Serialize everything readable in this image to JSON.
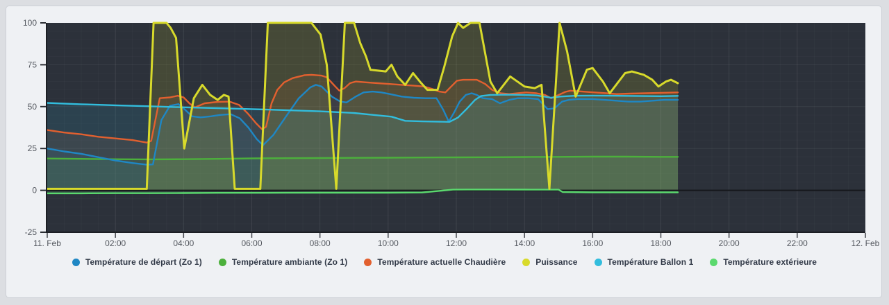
{
  "page": {
    "background_color": "#dcdee2",
    "card_background": "#eff1f4",
    "card_border": "#cdd0d6"
  },
  "chart_data": {
    "type": "line",
    "title": "",
    "xlabel": "",
    "ylabel": "",
    "xlim": [
      0,
      24
    ],
    "ylim": [
      -25,
      100
    ],
    "x_unit": "hours since 11. Feb 00:00",
    "grid": true,
    "legend_position": "bottom",
    "plot_background": "#2c313a",
    "axis_line_color": "#1c1f24",
    "zero_line_color": "#15171b",
    "tick_text_color": "#54585f",
    "xticks": [
      {
        "h": 0,
        "label": "11. Feb"
      },
      {
        "h": 2,
        "label": "02:00"
      },
      {
        "h": 4,
        "label": "04:00"
      },
      {
        "h": 6,
        "label": "06:00"
      },
      {
        "h": 8,
        "label": "08:00"
      },
      {
        "h": 10,
        "label": "10:00"
      },
      {
        "h": 12,
        "label": "12:00"
      },
      {
        "h": 14,
        "label": "14:00"
      },
      {
        "h": 16,
        "label": "16:00"
      },
      {
        "h": 18,
        "label": "18:00"
      },
      {
        "h": 20,
        "label": "20:00"
      },
      {
        "h": 22,
        "label": "22:00"
      },
      {
        "h": 24,
        "label": "12. Feb"
      }
    ],
    "yticks": [
      {
        "v": -25,
        "label": "-25"
      },
      {
        "v": 0,
        "label": "0"
      },
      {
        "v": 25,
        "label": "25"
      },
      {
        "v": 50,
        "label": "50"
      },
      {
        "v": 75,
        "label": "75"
      },
      {
        "v": 100,
        "label": "100"
      }
    ],
    "series": [
      {
        "name": "Température de départ (Zo 1)",
        "color": "#1f87c4",
        "z": 2,
        "width": 2.4,
        "fill_opacity": 0.1,
        "points": [
          [
            0,
            25
          ],
          [
            0.5,
            23.2
          ],
          [
            1,
            21.8
          ],
          [
            1.5,
            19.8
          ],
          [
            2,
            17.8
          ],
          [
            2.5,
            16.3
          ],
          [
            2.92,
            15.3
          ],
          [
            3.1,
            15.5
          ],
          [
            3.35,
            42
          ],
          [
            3.6,
            50.5
          ],
          [
            3.85,
            51.5
          ],
          [
            4.05,
            48
          ],
          [
            4.25,
            44.2
          ],
          [
            4.5,
            43.6
          ],
          [
            4.8,
            44.2
          ],
          [
            5.05,
            45
          ],
          [
            5.38,
            45.5
          ],
          [
            5.65,
            43
          ],
          [
            5.9,
            37.5
          ],
          [
            6.15,
            30.5
          ],
          [
            6.33,
            27
          ],
          [
            6.63,
            33
          ],
          [
            7,
            44
          ],
          [
            7.38,
            55
          ],
          [
            7.72,
            61.5
          ],
          [
            7.88,
            63
          ],
          [
            8.05,
            62
          ],
          [
            8.35,
            56
          ],
          [
            8.6,
            53
          ],
          [
            8.78,
            52.5
          ],
          [
            9.05,
            56
          ],
          [
            9.28,
            58.5
          ],
          [
            9.55,
            59
          ],
          [
            9.8,
            58.5
          ],
          [
            10.05,
            57.5
          ],
          [
            10.4,
            56
          ],
          [
            10.75,
            55.3
          ],
          [
            11.1,
            55
          ],
          [
            11.42,
            55
          ],
          [
            11.62,
            48
          ],
          [
            11.78,
            41
          ],
          [
            11.95,
            47
          ],
          [
            12.1,
            53
          ],
          [
            12.28,
            57
          ],
          [
            12.45,
            58
          ],
          [
            12.6,
            57
          ],
          [
            12.78,
            55
          ],
          [
            13.05,
            54.5
          ],
          [
            13.28,
            52
          ],
          [
            13.55,
            54
          ],
          [
            13.8,
            55
          ],
          [
            14.1,
            55
          ],
          [
            14.4,
            54.5
          ],
          [
            14.68,
            48.5
          ],
          [
            14.88,
            49
          ],
          [
            15.1,
            53
          ],
          [
            15.3,
            54
          ],
          [
            15.55,
            54.5
          ],
          [
            16,
            54.5
          ],
          [
            16.35,
            54
          ],
          [
            16.7,
            53.5
          ],
          [
            17.05,
            53
          ],
          [
            17.4,
            53
          ],
          [
            17.75,
            53.5
          ],
          [
            18.1,
            54
          ],
          [
            18.5,
            54
          ]
        ]
      },
      {
        "name": "Température ambiante (Zo 1)",
        "color": "#4cb03c",
        "z": 0,
        "width": 2.4,
        "fill_opacity": 0.16,
        "points": [
          [
            0,
            19
          ],
          [
            1,
            18.8
          ],
          [
            2,
            18.6
          ],
          [
            3,
            18.5
          ],
          [
            4,
            18.6
          ],
          [
            5,
            18.8
          ],
          [
            6,
            19.1
          ],
          [
            7,
            19.2
          ],
          [
            8,
            19.3
          ],
          [
            9,
            19.4
          ],
          [
            10,
            19.5
          ],
          [
            11,
            19.6
          ],
          [
            12,
            19.7
          ],
          [
            13,
            19.8
          ],
          [
            14,
            19.9
          ],
          [
            15,
            20
          ],
          [
            16,
            20.1
          ],
          [
            17,
            20.1
          ],
          [
            18,
            20
          ],
          [
            18.5,
            20
          ]
        ]
      },
      {
        "name": "Température actuelle Chaudière",
        "color": "#e2602f",
        "z": 3,
        "width": 2.4,
        "fill_opacity": 0.1,
        "points": [
          [
            0,
            36
          ],
          [
            0.5,
            34.5
          ],
          [
            1,
            33.5
          ],
          [
            1.5,
            32
          ],
          [
            2,
            31
          ],
          [
            2.5,
            30
          ],
          [
            2.92,
            28.5
          ],
          [
            3.05,
            29.5
          ],
          [
            3.3,
            55
          ],
          [
            3.6,
            55.5
          ],
          [
            3.83,
            56.5
          ],
          [
            4,
            55.5
          ],
          [
            4.17,
            52
          ],
          [
            4.33,
            49.5
          ],
          [
            4.62,
            52
          ],
          [
            5,
            52.8
          ],
          [
            5.35,
            53
          ],
          [
            5.63,
            51
          ],
          [
            5.88,
            46
          ],
          [
            6.13,
            40
          ],
          [
            6.3,
            36.5
          ],
          [
            6.42,
            38
          ],
          [
            6.58,
            52
          ],
          [
            6.75,
            60
          ],
          [
            6.95,
            64.5
          ],
          [
            7.2,
            67
          ],
          [
            7.55,
            68.8
          ],
          [
            7.75,
            69
          ],
          [
            8.05,
            68.5
          ],
          [
            8.2,
            67.5
          ],
          [
            8.45,
            62
          ],
          [
            8.57,
            59.5
          ],
          [
            8.72,
            61
          ],
          [
            8.88,
            64
          ],
          [
            9.05,
            65
          ],
          [
            9.35,
            64.5
          ],
          [
            9.7,
            64
          ],
          [
            10.05,
            63.5
          ],
          [
            10.4,
            63
          ],
          [
            10.75,
            62.5
          ],
          [
            11.05,
            62
          ],
          [
            11.3,
            60.5
          ],
          [
            11.5,
            59
          ],
          [
            11.68,
            58.5
          ],
          [
            11.85,
            62
          ],
          [
            12.02,
            65.5
          ],
          [
            12.2,
            66
          ],
          [
            12.6,
            66
          ],
          [
            12.85,
            63.5
          ],
          [
            13.05,
            60
          ],
          [
            13.3,
            58
          ],
          [
            13.55,
            57.5
          ],
          [
            13.8,
            58
          ],
          [
            14.05,
            58.5
          ],
          [
            14.35,
            58
          ],
          [
            14.6,
            57
          ],
          [
            14.78,
            55
          ],
          [
            14.95,
            56.5
          ],
          [
            15.2,
            58.8
          ],
          [
            15.35,
            59.5
          ],
          [
            15.7,
            59
          ],
          [
            16.05,
            58.5
          ],
          [
            16.4,
            58
          ],
          [
            16.7,
            57.5
          ],
          [
            17.1,
            57.8
          ],
          [
            17.55,
            58
          ],
          [
            18,
            58.2
          ],
          [
            18.5,
            58.5
          ]
        ]
      },
      {
        "name": "Puissance",
        "color": "#d8da2b",
        "z": 5,
        "width": 3,
        "fill_opacity": 0.15,
        "points": [
          [
            0,
            0.9
          ],
          [
            2.92,
            0.9
          ],
          [
            3.12,
            100
          ],
          [
            3.5,
            100
          ],
          [
            3.62,
            97
          ],
          [
            3.78,
            91
          ],
          [
            4.02,
            25
          ],
          [
            4.3,
            55
          ],
          [
            4.55,
            63
          ],
          [
            4.78,
            57
          ],
          [
            5,
            54
          ],
          [
            5.18,
            57
          ],
          [
            5.32,
            56
          ],
          [
            5.5,
            0.9
          ],
          [
            6.25,
            0.9
          ],
          [
            6.47,
            100
          ],
          [
            7.75,
            100
          ],
          [
            8.02,
            93
          ],
          [
            8.2,
            75
          ],
          [
            8.48,
            0.9
          ],
          [
            8.73,
            100
          ],
          [
            9,
            100
          ],
          [
            9.18,
            88
          ],
          [
            9.35,
            80
          ],
          [
            9.48,
            72
          ],
          [
            9.93,
            71
          ],
          [
            10.1,
            75
          ],
          [
            10.27,
            68
          ],
          [
            10.5,
            63
          ],
          [
            10.73,
            70
          ],
          [
            10.93,
            65
          ],
          [
            11.15,
            60
          ],
          [
            11.45,
            60
          ],
          [
            11.65,
            74
          ],
          [
            11.88,
            92
          ],
          [
            12.05,
            100
          ],
          [
            12.2,
            97
          ],
          [
            12.42,
            100
          ],
          [
            12.68,
            100
          ],
          [
            13,
            65
          ],
          [
            13.2,
            58
          ],
          [
            13.58,
            68
          ],
          [
            14,
            62
          ],
          [
            14.3,
            61
          ],
          [
            14.5,
            63
          ],
          [
            14.73,
            0.9
          ],
          [
            15.03,
            100
          ],
          [
            15.25,
            83
          ],
          [
            15.5,
            56
          ],
          [
            15.83,
            72
          ],
          [
            16,
            73
          ],
          [
            16.3,
            65
          ],
          [
            16.5,
            58
          ],
          [
            16.95,
            70
          ],
          [
            17.15,
            71
          ],
          [
            17.5,
            69
          ],
          [
            17.75,
            66
          ],
          [
            17.93,
            62
          ],
          [
            18.15,
            65
          ],
          [
            18.3,
            66
          ],
          [
            18.5,
            64
          ]
        ]
      },
      {
        "name": "Température Ballon 1",
        "color": "#32bddd",
        "z": 4,
        "width": 2.4,
        "fill_opacity": 0.13,
        "points": [
          [
            0,
            52.2
          ],
          [
            1,
            51.4
          ],
          [
            2,
            50.8
          ],
          [
            3,
            50.2
          ],
          [
            4,
            49.6
          ],
          [
            5,
            49.1
          ],
          [
            6,
            48.5
          ],
          [
            7,
            47.9
          ],
          [
            8,
            47.2
          ],
          [
            9,
            46.2
          ],
          [
            9.6,
            45
          ],
          [
            10.1,
            44
          ],
          [
            10.5,
            41.5
          ],
          [
            11,
            41.2
          ],
          [
            11.5,
            41
          ],
          [
            11.8,
            40.9
          ],
          [
            12.05,
            43.5
          ],
          [
            12.3,
            48.5
          ],
          [
            12.55,
            54
          ],
          [
            12.72,
            56.3
          ],
          [
            13,
            57
          ],
          [
            13.5,
            57.1
          ],
          [
            14,
            57
          ],
          [
            14.35,
            56.7
          ],
          [
            14.78,
            55.3
          ],
          [
            15.05,
            56
          ],
          [
            15.5,
            56.5
          ],
          [
            16,
            56.6
          ],
          [
            16.5,
            56.5
          ],
          [
            17,
            56.4
          ],
          [
            17.5,
            56.3
          ],
          [
            18,
            56.2
          ],
          [
            18.5,
            56.4
          ]
        ]
      },
      {
        "name": "Température extérieure",
        "color": "#5bd96e",
        "z": 1,
        "width": 2.4,
        "fill_opacity": 0.14,
        "points": [
          [
            0,
            -1.8
          ],
          [
            1,
            -1.8
          ],
          [
            2,
            -1.7
          ],
          [
            3,
            -1.7
          ],
          [
            4,
            -1.6
          ],
          [
            5,
            -1.5
          ],
          [
            6,
            -1.5
          ],
          [
            7,
            -1.45
          ],
          [
            8,
            -1.4
          ],
          [
            9,
            -1.4
          ],
          [
            10,
            -1.4
          ],
          [
            11,
            -1.3
          ],
          [
            11.35,
            -0.6
          ],
          [
            11.9,
            0.4
          ],
          [
            12.3,
            0.5
          ],
          [
            13,
            0.5
          ],
          [
            14,
            0.45
          ],
          [
            15,
            0.4
          ],
          [
            15.12,
            -1
          ],
          [
            16,
            -1.2
          ],
          [
            17,
            -1.2
          ],
          [
            18,
            -1.2
          ],
          [
            18.5,
            -1.2
          ]
        ]
      }
    ]
  }
}
